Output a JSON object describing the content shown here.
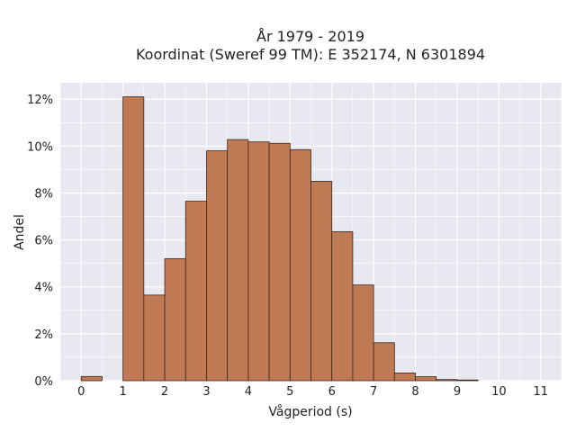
{
  "chart_data": {
    "type": "bar",
    "title_line1": "År 1979 - 2019",
    "title_line2": "Koordinat (Sweref 99 TM): E 352174, N 6301894",
    "xlabel": "Vågperiod (s)",
    "ylabel": "Andel",
    "xlim": [
      -0.5,
      11.5
    ],
    "ylim": [
      0,
      12.7
    ],
    "x_ticks": [
      0,
      1,
      2,
      3,
      4,
      5,
      6,
      7,
      8,
      9,
      10,
      11
    ],
    "y_ticks": [
      0,
      2,
      4,
      6,
      8,
      10,
      12
    ],
    "y_tick_suffix": "%",
    "bin_width": 0.5,
    "bins": [
      {
        "start": 0.0,
        "value": 0.18
      },
      {
        "start": 1.0,
        "value": 12.1
      },
      {
        "start": 1.5,
        "value": 3.65
      },
      {
        "start": 2.0,
        "value": 5.2
      },
      {
        "start": 2.5,
        "value": 7.65
      },
      {
        "start": 3.0,
        "value": 9.8
      },
      {
        "start": 3.5,
        "value": 10.28
      },
      {
        "start": 4.0,
        "value": 10.18
      },
      {
        "start": 4.5,
        "value": 10.12
      },
      {
        "start": 5.0,
        "value": 9.85
      },
      {
        "start": 5.5,
        "value": 8.5
      },
      {
        "start": 6.0,
        "value": 6.35
      },
      {
        "start": 6.5,
        "value": 4.08
      },
      {
        "start": 7.0,
        "value": 1.62
      },
      {
        "start": 7.5,
        "value": 0.33
      },
      {
        "start": 8.0,
        "value": 0.17
      },
      {
        "start": 8.5,
        "value": 0.05
      },
      {
        "start": 9.0,
        "value": 0.03
      }
    ],
    "grid": true,
    "colors": {
      "bar": "#bf7a54",
      "bar_edge": "#3a2418",
      "plot_bg": "#e8e8f1",
      "grid": "#ffffff"
    }
  }
}
